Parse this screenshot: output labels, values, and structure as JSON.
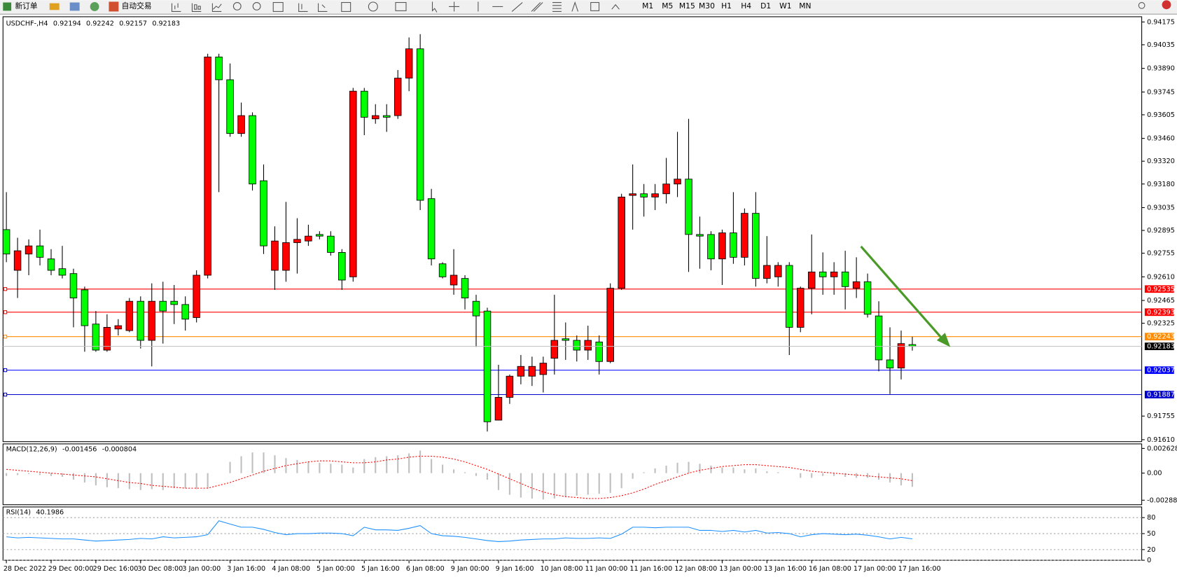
{
  "toolbar": {
    "new_order": "新订单",
    "auto_trading": "自动交易",
    "timeframes": [
      "M1",
      "M5",
      "M15",
      "M30",
      "H1",
      "H4",
      "D1",
      "W1",
      "MN"
    ]
  },
  "chart_data": [
    {
      "type": "candlestick",
      "symbol": "USDCHF-,H4",
      "up_color": "#ff0000",
      "down_color": "#00ff00",
      "bid_color": "#c0c0c0",
      "categories": [
        "28 Dec 2022",
        null,
        null,
        null,
        "29 Dec 00:00",
        null,
        null,
        null,
        "29 Dec 16:00",
        null,
        null,
        null,
        "30 Dec 08:00",
        null,
        null,
        null,
        "3 Jan 00:00",
        null,
        null,
        null,
        "3 Jan 16:00",
        null,
        null,
        null,
        "4 Jan 08:00",
        null,
        null,
        null,
        "5 Jan 00:00",
        null,
        null,
        null,
        "5 Jan 16:00",
        null,
        null,
        null,
        "6 Jan 08:00",
        null,
        null,
        null,
        "9 Jan 00:00",
        null,
        null,
        null,
        "9 Jan 16:00",
        null,
        null,
        null,
        "10 Jan 08:00",
        null,
        null,
        null,
        "11 Jan 00:00",
        null,
        null,
        null,
        "11 Jan 16:00",
        null,
        null,
        null,
        "12 Jan 08:00",
        null,
        null,
        null,
        "13 Jan 00:00",
        null,
        null,
        null,
        "13 Jan 16:00",
        null,
        null,
        null,
        "16 Jan 08:00",
        null,
        null,
        null,
        "17 Jan 00:00",
        null,
        null,
        null,
        "17 Jan 16:00",
        null
      ],
      "open": [
        0.929,
        0.9265,
        0.9275,
        0.928,
        0.9272,
        0.9266,
        0.9263,
        0.9253,
        0.9232,
        0.9216,
        0.9229,
        0.9228,
        0.9246,
        0.9222,
        0.9246,
        0.9246,
        0.9244,
        0.9236,
        0.9262,
        0.9396,
        0.9382,
        0.9349,
        0.936,
        0.932,
        0.9265,
        0.9265,
        0.9282,
        0.9283,
        0.9287,
        0.9286,
        0.9276,
        0.9261,
        0.9375,
        0.9358,
        0.936,
        0.936,
        0.9383,
        0.9401,
        0.9309,
        0.9269,
        0.9256,
        0.926,
        0.9246,
        0.924,
        0.9173,
        0.9187,
        0.92,
        0.92,
        0.9201,
        0.9211,
        0.9223,
        0.9222,
        0.9216,
        0.9221,
        0.9209,
        0.9254,
        0.9311,
        0.9312,
        0.931,
        0.9312,
        0.9318,
        0.9321,
        0.9287,
        0.9287,
        0.9272,
        0.9288,
        0.9273,
        0.93,
        0.926,
        0.9261,
        0.9268,
        0.923,
        0.9254,
        0.9264,
        0.9261,
        0.9264,
        0.9254,
        0.9258,
        0.9237,
        0.921,
        0.9205,
        0.92194
      ],
      "high": [
        0.9313,
        0.9285,
        0.9284,
        0.929,
        0.9278,
        0.928,
        0.9266,
        0.9255,
        0.924,
        0.9238,
        0.9235,
        0.9248,
        0.9249,
        0.9257,
        0.9258,
        0.9256,
        0.9249,
        0.9265,
        0.9398,
        0.9398,
        0.9392,
        0.9368,
        0.9362,
        0.933,
        0.9292,
        0.9307,
        0.9297,
        0.9293,
        0.9289,
        0.9289,
        0.9278,
        0.9377,
        0.9377,
        0.9367,
        0.9367,
        0.9388,
        0.9408,
        0.941,
        0.9315,
        0.927,
        0.9278,
        0.9262,
        0.925,
        0.9242,
        0.9207,
        0.9201,
        0.9213,
        0.9212,
        0.9212,
        0.925,
        0.9233,
        0.9225,
        0.9231,
        0.9225,
        0.9257,
        0.9312,
        0.933,
        0.9318,
        0.9318,
        0.9334,
        0.935,
        0.9358,
        0.9298,
        0.9289,
        0.929,
        0.9313,
        0.9303,
        0.9313,
        0.9286,
        0.927,
        0.927,
        0.9255,
        0.9287,
        0.9276,
        0.927,
        0.9277,
        0.9273,
        0.9263,
        0.9246,
        0.923,
        0.9228,
        0.92242
      ],
      "low": [
        0.927,
        0.9248,
        0.9262,
        0.9268,
        0.9262,
        0.926,
        0.923,
        0.9215,
        0.9215,
        0.9215,
        0.9225,
        0.9227,
        0.9217,
        0.9206,
        0.922,
        0.9232,
        0.9228,
        0.9233,
        0.926,
        0.9313,
        0.9347,
        0.9347,
        0.9314,
        0.9275,
        0.9253,
        0.9258,
        0.9263,
        0.928,
        0.9284,
        0.9274,
        0.9253,
        0.9258,
        0.9348,
        0.9355,
        0.935,
        0.9358,
        0.9375,
        0.9302,
        0.9268,
        0.926,
        0.925,
        0.9241,
        0.9218,
        0.9166,
        0.9173,
        0.9183,
        0.9195,
        0.9194,
        0.919,
        0.9201,
        0.921,
        0.9209,
        0.921,
        0.9201,
        0.9208,
        0.9253,
        0.929,
        0.9298,
        0.9302,
        0.9306,
        0.931,
        0.9264,
        0.9266,
        0.9265,
        0.9256,
        0.9269,
        0.9268,
        0.9255,
        0.9257,
        0.9255,
        0.9213,
        0.9227,
        0.9238,
        0.925,
        0.925,
        0.9241,
        0.9248,
        0.9236,
        0.9203,
        0.9189,
        0.9198,
        0.92157
      ],
      "close": [
        0.9275,
        0.9277,
        0.928,
        0.9273,
        0.9265,
        0.9262,
        0.9248,
        0.9231,
        0.9216,
        0.923,
        0.9231,
        0.9246,
        0.9222,
        0.9246,
        0.924,
        0.9244,
        0.9235,
        0.9262,
        0.9396,
        0.9382,
        0.9349,
        0.936,
        0.9318,
        0.928,
        0.9283,
        0.9282,
        0.9284,
        0.9286,
        0.9286,
        0.9276,
        0.9259,
        0.9375,
        0.9359,
        0.936,
        0.9359,
        0.9383,
        0.9401,
        0.9308,
        0.9272,
        0.9261,
        0.9262,
        0.9248,
        0.9237,
        0.9172,
        0.9187,
        0.92,
        0.9206,
        0.9206,
        0.9208,
        0.9222,
        0.9222,
        0.9216,
        0.9222,
        0.9209,
        0.9254,
        0.931,
        0.9312,
        0.931,
        0.9312,
        0.9318,
        0.9321,
        0.9287,
        0.9286,
        0.9272,
        0.9288,
        0.9273,
        0.93,
        0.926,
        0.9268,
        0.9268,
        0.923,
        0.9254,
        0.9264,
        0.9261,
        0.9264,
        0.9255,
        0.9258,
        0.9238,
        0.921,
        0.9205,
        0.922,
        0.92183
      ],
      "ylim": [
        0.91598,
        0.94207
      ],
      "yticks": [
        {
          "value": 0.9161,
          "label": "0.91610"
        },
        0.91755,
        0.92325,
        0.92465,
        {
          "value": 0.9261,
          "label": "0.92610"
        },
        0.92755,
        0.92895,
        0.93035,
        {
          "value": 0.9318,
          "label": "0.93180"
        },
        {
          "value": 0.9332,
          "label": "0.93320"
        },
        {
          "value": 0.9346,
          "label": "0.93460"
        },
        0.93605,
        0.93745,
        {
          "value": 0.9389,
          "label": "0.93890"
        },
        0.94035,
        0.94175
      ],
      "hlines": [
        {
          "value": 0.92535,
          "color": "#ff0000"
        },
        {
          "value": 0.92393,
          "color": "#ff0000"
        },
        {
          "value": 0.92243,
          "color": "#ff8c00"
        },
        {
          "value": 0.92037,
          "color": "#0000ff"
        },
        {
          "value": 0.91887,
          "color": "#0000cd"
        }
      ]
    },
    {
      "type": "macd",
      "title": "MACD(12,26,9)",
      "histogram_color": "#c0c0c0",
      "signal_color": "#ff0000",
      "histogram": [
        -0.0003,
        -0.0002,
        -0.0001,
        -0.0002,
        -0.0003,
        -0.0004,
        -0.0007,
        -0.001,
        -0.0013,
        -0.0015,
        -0.0016,
        -0.0017,
        -0.0018,
        -0.0017,
        -0.0018,
        -0.0016,
        -0.0016,
        -0.0017,
        -0.0016,
        0,
        0.0012,
        0.0018,
        0.0022,
        0.0022,
        0.0019,
        0.0016,
        0.0014,
        0.0012,
        0.0011,
        0.001,
        0.0009,
        0.0006,
        0.0015,
        0.0017,
        0.0018,
        0.0019,
        0.0021,
        0.0024,
        0.0015,
        0.0009,
        0.0004,
        0.0001,
        -0.0003,
        -0.0007,
        -0.0018,
        -0.0023,
        -0.0026,
        -0.0027,
        -0.0028,
        -0.0027,
        -0.0025,
        -0.0024,
        -0.0023,
        -0.0022,
        -0.0021,
        -0.0016,
        -0.0006,
        0.0001,
        0.0005,
        0.0008,
        0.0011,
        0.0012,
        0.001,
        0.0008,
        0.0006,
        0.0006,
        0.0004,
        0.0005,
        0.0002,
        0.0001,
        0,
        -0.0005,
        -0.0005,
        -0.0003,
        -0.0003,
        -0.0004,
        -0.0005,
        -0.0005,
        -0.0007,
        -0.001,
        -0.0013,
        -0.001456
      ],
      "signal": [
        0.0004,
        0.0003,
        0.0002,
        0.0001,
        0,
        -0.0001,
        -0.0002,
        -0.0003,
        -0.0004,
        -0.0006,
        -0.0008,
        -0.001,
        -0.0011,
        -0.0013,
        -0.0014,
        -0.0015,
        -0.0016,
        -0.0016,
        -0.0016,
        -0.0013,
        -0.001,
        -0.0006,
        -0.0002,
        0.0002,
        0.0005,
        0.0008,
        0.001,
        0.0012,
        0.0013,
        0.0013,
        0.0012,
        0.0011,
        0.0011,
        0.0012,
        0.0014,
        0.0015,
        0.0017,
        0.0018,
        0.0018,
        0.0017,
        0.0015,
        0.0012,
        0.0008,
        0.0004,
        -0.0001,
        -0.0006,
        -0.0011,
        -0.0016,
        -0.002,
        -0.0023,
        -0.0025,
        -0.0026,
        -0.0027,
        -0.0027,
        -0.0026,
        -0.0024,
        -0.0021,
        -0.0017,
        -0.0012,
        -0.0008,
        -0.0004,
        0,
        0.0003,
        0.0005,
        0.0007,
        0.0008,
        0.0009,
        0.0009,
        0.0008,
        0.0007,
        0.0006,
        0.0004,
        0.0002,
        0.0001,
        0,
        -0.0001,
        -0.0002,
        -0.0003,
        -0.0004,
        -0.0005,
        -0.0006,
        -0.000804
      ],
      "ylim": [
        -0.00336,
        0.00311
      ],
      "yticks": [
        -0.002881,
        {
          "value": 0,
          "label": "0.00"
        },
        0.002628
      ]
    },
    {
      "type": "line",
      "title": "RSI(14)",
      "color": "#1e90ff",
      "grid": true,
      "values": [
        44,
        42,
        43,
        42,
        41,
        40,
        40,
        38,
        36,
        37,
        38,
        39,
        41,
        40,
        44,
        42,
        43,
        44,
        48,
        74,
        68,
        62,
        62,
        58,
        52,
        48,
        50,
        50,
        51,
        51,
        50,
        46,
        62,
        57,
        57,
        56,
        60,
        65,
        50,
        46,
        45,
        43,
        40,
        37,
        35,
        36,
        38,
        39,
        40,
        40,
        42,
        41,
        41,
        42,
        41,
        49,
        62,
        62,
        61,
        62,
        62,
        62,
        56,
        56,
        54,
        56,
        53,
        56,
        51,
        52,
        50,
        44,
        48,
        50,
        49,
        48,
        49,
        47,
        44,
        40,
        43,
        40.1986
      ],
      "ylim": [
        0,
        100
      ],
      "yticks": [
        0,
        20,
        50,
        80
      ]
    }
  ]
}
